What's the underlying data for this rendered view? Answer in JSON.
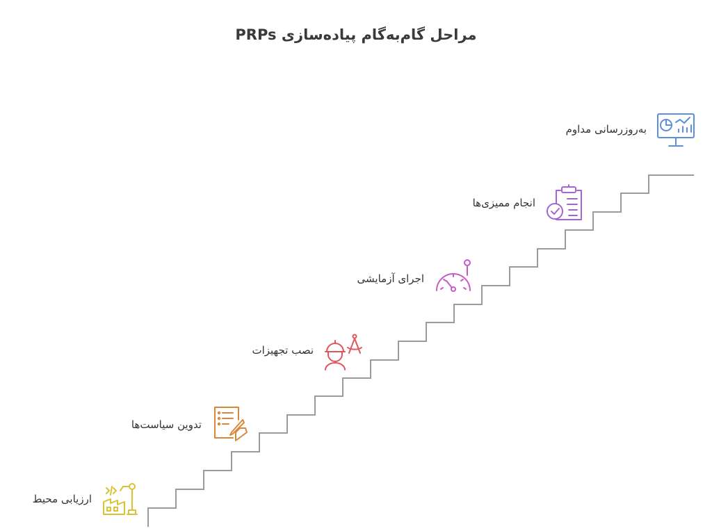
{
  "title": "مراحل گام‌به‌گام پیاده‌سازی PRPs",
  "steps": [
    {
      "label": "ارزیابی محیط",
      "icon": "factory-robot-arm-icon",
      "color": "#D9C234"
    },
    {
      "label": "تدوین سیاست‌ها",
      "icon": "document-writing-hand-icon",
      "color": "#D9883A"
    },
    {
      "label": "نصب تجهیزات",
      "icon": "engineer-compass-icon",
      "color": "#E0555A"
    },
    {
      "label": "اجرای آزمایشی",
      "icon": "gauge-meter-icon",
      "color": "#C958C9"
    },
    {
      "label": "انجام ممیزی‌ها",
      "icon": "clipboard-check-icon",
      "color": "#A463D8"
    },
    {
      "label": "به‌روزرسانی مداوم",
      "icon": "monitor-dashboard-icon",
      "color": "#5B8DE0"
    }
  ]
}
